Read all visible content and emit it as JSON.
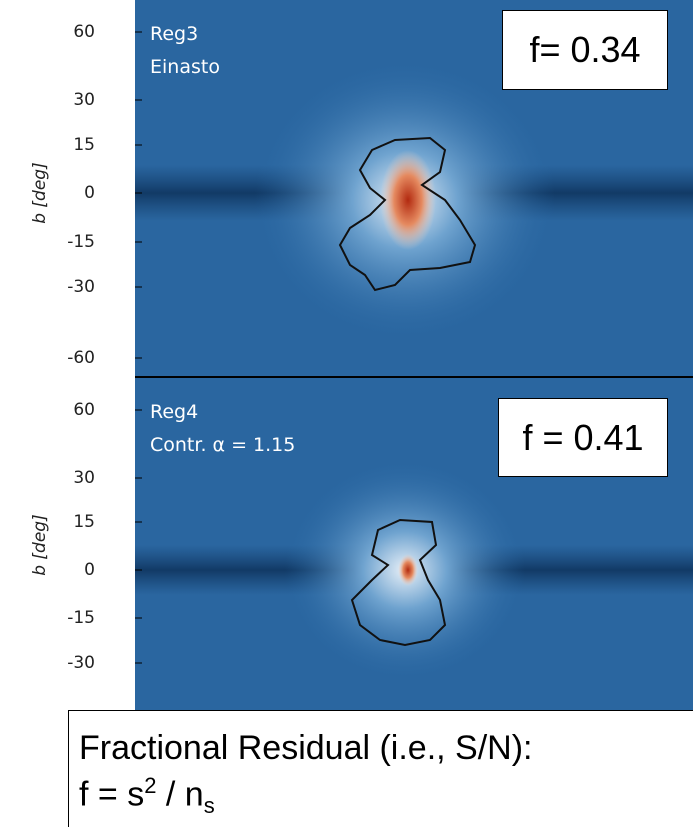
{
  "panels": [
    {
      "label": "Reg3",
      "model": "Einasto",
      "y_axis_label": "b [deg]",
      "yticks": [
        "60",
        "30",
        "15",
        "0",
        "-15",
        "-30",
        "-60"
      ],
      "f_box": "f= 0.34"
    },
    {
      "label": "Reg4",
      "model": "Contr. α = 1.15",
      "y_axis_label": "b [deg]",
      "yticks": [
        "60",
        "30",
        "15",
        "0",
        "-15",
        "-30"
      ],
      "f_box": "f = 0.41"
    }
  ],
  "caption": {
    "line1": "Fractional Residual (i.e., S/N):",
    "line2": {
      "pre": "f = s",
      "sup": "2",
      "mid": " / n",
      "sub": "s"
    }
  }
}
